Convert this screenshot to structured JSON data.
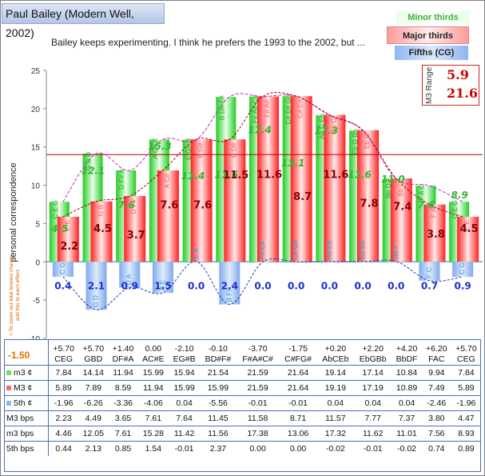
{
  "title": "Paul Bailey (Modern Well, 2002)",
  "subtitle": "Bailey keeps experimenting. I think he prefers the 1993 to the 2002, but ...",
  "legend": {
    "minor": "Minor thirds",
    "major": "Major thirds",
    "fifths": "Fifths (CG)"
  },
  "m3_range": {
    "label": "M3 Range",
    "v1": "5.9",
    "v2": "21.6"
  },
  "offset": {
    "value": "-1.50",
    "note": "<-To zoom out total tension change,\nadd this to each effect."
  },
  "colors": {
    "minor": "#33cc33",
    "major": "#ff3030",
    "fifths": "#6f9fe6",
    "refline": "#c00000",
    "zeroline": "#3a9bd6"
  },
  "chart_data": {
    "type": "bar",
    "ylabel": "personal correspondence",
    "ylim": [
      -10,
      25
    ],
    "yticks": [
      -10,
      -5,
      0,
      5,
      10,
      15,
      20,
      25
    ],
    "reference_line": 14,
    "categories": [
      "C",
      "G",
      "D",
      "A",
      "E",
      "B",
      "F#",
      "C#",
      "Ab",
      "Eb",
      "Bb",
      "F",
      "C"
    ],
    "series": [
      {
        "key": "minor",
        "values": [
          7.84,
          14.14,
          11.94,
          15.99,
          15.94,
          21.54,
          21.59,
          21.64,
          19.14,
          17.14,
          10.84,
          9.94,
          7.84
        ]
      },
      {
        "key": "major",
        "values": [
          5.89,
          7.89,
          8.59,
          11.94,
          15.99,
          15.99,
          21.59,
          21.64,
          19.19,
          17.19,
          10.89,
          7.49,
          5.89
        ]
      },
      {
        "key": "fifths",
        "values": [
          -1.96,
          -6.26,
          -3.36,
          -4.06,
          0.04,
          -5.56,
          -0.01,
          -0.01,
          0.04,
          0.04,
          0.04,
          -2.46,
          -1.96
        ]
      }
    ],
    "major_labels": [
      "2.2",
      "4.5",
      "3.7",
      "7.6",
      "7.6",
      "11.5",
      "11.6",
      "8.7",
      "11.6",
      "7.8",
      "7.4",
      "3.8",
      "4.5"
    ],
    "minor_labels": [
      "4.5",
      "12.1",
      "7.6",
      "15.3",
      "11.4",
      "11.6",
      "17.4",
      "13.1",
      "17.3",
      "11.6",
      "11.0",
      "7.6",
      "8.9"
    ],
    "fifth_labels": [
      "0.4",
      "2.1",
      "0.9",
      "1.5",
      "0.0",
      "2.4",
      "0.0",
      "0.0",
      "0.0",
      "0.0",
      "0.0",
      "0.7",
      "0.9"
    ],
    "minor_triads": [
      "C E G",
      "G B D",
      "D F# A",
      "A C# E",
      "E G# B",
      "B D# F#",
      "F# A# C#",
      "C# E# G#",
      "Ab C Eb",
      "Eb G Bb",
      "Bb D F",
      "F A C",
      "C E G"
    ],
    "major_triads": [
      "C E",
      "G B",
      "D F#",
      "A C#",
      "E G#",
      "B D#",
      "F# A#",
      "C# E#",
      "Ab C",
      "Eb G",
      "Bb D",
      "F A",
      "C E"
    ],
    "fifth_pairs": [
      "C G",
      "G D",
      "D A",
      "A E",
      "E B",
      "B F#",
      "F# C#",
      "C# G#",
      "Ab Eb",
      "Eb Bb",
      "Bb F",
      "F C",
      "C G"
    ]
  },
  "table": {
    "offsets": [
      "+5.70",
      "+5.70",
      "+1.40",
      "0.00",
      "-2.10",
      "-0.10",
      "-3.70",
      "-1.75",
      "+0.20",
      "+2.20",
      "+4.20",
      "+6.20",
      "+5.70"
    ],
    "chords": [
      "CEG",
      "GBD",
      "DF#A",
      "AC#E",
      "EG#B",
      "BD#F#",
      "F#A#C#",
      "C#FG#",
      "AbCEb",
      "EbGBb",
      "BbDF",
      "FAC",
      "CEG"
    ],
    "rows": [
      {
        "label": "m3 ¢",
        "cells": [
          "7.84",
          "14.14",
          "11.94",
          "15.99",
          "15.94",
          "21.54",
          "21.59",
          "21.64",
          "19.14",
          "17.14",
          "10.84",
          "9.94",
          "7.84"
        ]
      },
      {
        "label": "M3 ¢",
        "cells": [
          "5.89",
          "7.89",
          "8.59",
          "11.94",
          "15.99",
          "15.99",
          "21.59",
          "21.64",
          "19.19",
          "17.19",
          "10.89",
          "7.49",
          "5.89"
        ]
      },
      {
        "label": "5th ¢",
        "cells": [
          "-1.96",
          "-6.26",
          "-3.36",
          "-4.06",
          "0.04",
          "-5.56",
          "-0.01",
          "-0.01",
          "0.04",
          "0.04",
          "0.04",
          "-2.46",
          "-1.96"
        ]
      },
      {
        "label": "M3 bps",
        "cells": [
          "2.23",
          "4.49",
          "3.65",
          "7.61",
          "7.64",
          "11.45",
          "11.58",
          "8.71",
          "11.57",
          "7.77",
          "7.37",
          "3.80",
          "4.47"
        ]
      },
      {
        "label": "m3 bps",
        "cells": [
          "4.46",
          "12.05",
          "7.61",
          "15.28",
          "11.42",
          "11.56",
          "17.38",
          "13.06",
          "17.32",
          "11.62",
          "11.01",
          "7.56",
          "8.93"
        ]
      },
      {
        "label": "5th bps",
        "cells": [
          "0.44",
          "2.13",
          "0.85",
          "1.54",
          "-0.01",
          "2.37",
          "0.00",
          "0.00",
          "-0.02",
          "-0.01",
          "-0.02",
          "0.74",
          "0.89"
        ]
      }
    ]
  }
}
